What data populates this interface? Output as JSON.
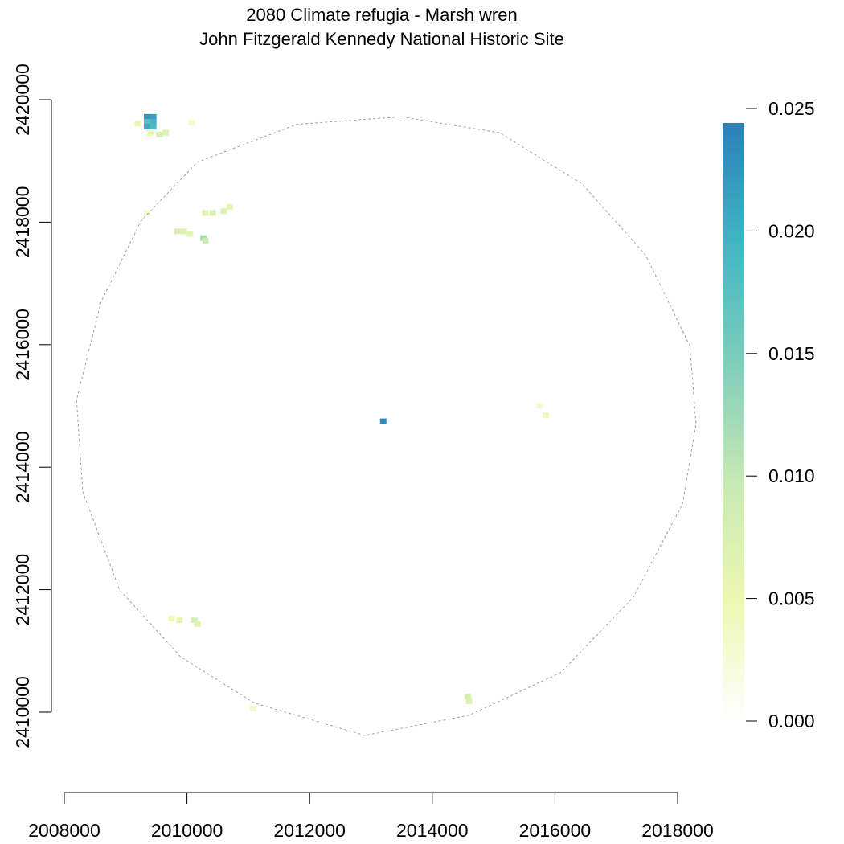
{
  "chart_data": {
    "type": "heatmap",
    "title": "2080 Climate refugia - Marsh wren",
    "subtitle": "John Fitzgerald Kennedy National Historic Site",
    "xlabel": "",
    "ylabel": "",
    "xlim": [
      2008000,
      2018000
    ],
    "ylim": [
      2410000,
      2420000
    ],
    "x_ticks": [
      "2008000",
      "2010000",
      "2012000",
      "2014000",
      "2016000",
      "2018000"
    ],
    "y_ticks": [
      "2410000",
      "2412000",
      "2414000",
      "2416000",
      "2418000",
      "2420000"
    ],
    "legend": {
      "position": "right",
      "ticks": [
        "0.000",
        "0.005",
        "0.010",
        "0.015",
        "0.020",
        "0.025"
      ],
      "range": [
        0,
        0.025
      ],
      "colors": [
        "#ffffff",
        "#edf8b1",
        "#c7e9b4",
        "#7fcdbb",
        "#41b6c4",
        "#2c7fb8"
      ]
    },
    "boundary": {
      "description": "dashed circular buffer boundary",
      "color": "#a0a0a0",
      "polygon": [
        [
          2013500,
          2419720
        ],
        [
          2015100,
          2419460
        ],
        [
          2016450,
          2418620
        ],
        [
          2017480,
          2417460
        ],
        [
          2018200,
          2415980
        ],
        [
          2018300,
          2414700
        ],
        [
          2018080,
          2413400
        ],
        [
          2017280,
          2411880
        ],
        [
          2016100,
          2410650
        ],
        [
          2014600,
          2409950
        ],
        [
          2012900,
          2409620
        ],
        [
          2011100,
          2410150
        ],
        [
          2009900,
          2410900
        ],
        [
          2008900,
          2412000
        ],
        [
          2008300,
          2413600
        ],
        [
          2008200,
          2415100
        ],
        [
          2008600,
          2416700
        ],
        [
          2009250,
          2418020
        ],
        [
          2010170,
          2418980
        ],
        [
          2011800,
          2419600
        ]
      ]
    },
    "cells": [
      {
        "x": 2009350,
        "y": 2419720,
        "value": 0.023
      },
      {
        "x": 2009450,
        "y": 2419720,
        "value": 0.022
      },
      {
        "x": 2009350,
        "y": 2419640,
        "value": 0.018
      },
      {
        "x": 2009450,
        "y": 2419640,
        "value": 0.02
      },
      {
        "x": 2009350,
        "y": 2419560,
        "value": 0.021
      },
      {
        "x": 2009450,
        "y": 2419560,
        "value": 0.019
      },
      {
        "x": 2009200,
        "y": 2419610,
        "value": 0.006
      },
      {
        "x": 2009550,
        "y": 2419430,
        "value": 0.008
      },
      {
        "x": 2009400,
        "y": 2419450,
        "value": 0.005
      },
      {
        "x": 2009650,
        "y": 2419460,
        "value": 0.007
      },
      {
        "x": 2010080,
        "y": 2419620,
        "value": 0.003
      },
      {
        "x": 2010700,
        "y": 2418250,
        "value": 0.006
      },
      {
        "x": 2010600,
        "y": 2418180,
        "value": 0.007
      },
      {
        "x": 2010420,
        "y": 2418150,
        "value": 0.008
      },
      {
        "x": 2010300,
        "y": 2418150,
        "value": 0.007
      },
      {
        "x": 2009850,
        "y": 2417850,
        "value": 0.008
      },
      {
        "x": 2009950,
        "y": 2417850,
        "value": 0.007
      },
      {
        "x": 2010050,
        "y": 2417810,
        "value": 0.006
      },
      {
        "x": 2010270,
        "y": 2417740,
        "value": 0.012
      },
      {
        "x": 2010300,
        "y": 2417700,
        "value": 0.01
      },
      {
        "x": 2009350,
        "y": 2418150,
        "value": 0.003
      },
      {
        "x": 2015750,
        "y": 2415000,
        "value": 0.003
      },
      {
        "x": 2015850,
        "y": 2414850,
        "value": 0.004
      },
      {
        "x": 2009750,
        "y": 2411530,
        "value": 0.005
      },
      {
        "x": 2009880,
        "y": 2411500,
        "value": 0.006
      },
      {
        "x": 2010120,
        "y": 2411500,
        "value": 0.008
      },
      {
        "x": 2010170,
        "y": 2411440,
        "value": 0.007
      },
      {
        "x": 2011080,
        "y": 2410060,
        "value": 0.003
      },
      {
        "x": 2014580,
        "y": 2410250,
        "value": 0.008
      },
      {
        "x": 2014600,
        "y": 2410180,
        "value": 0.007
      },
      {
        "x": 2013200,
        "y": 2414750,
        "value": 0.024
      }
    ]
  }
}
